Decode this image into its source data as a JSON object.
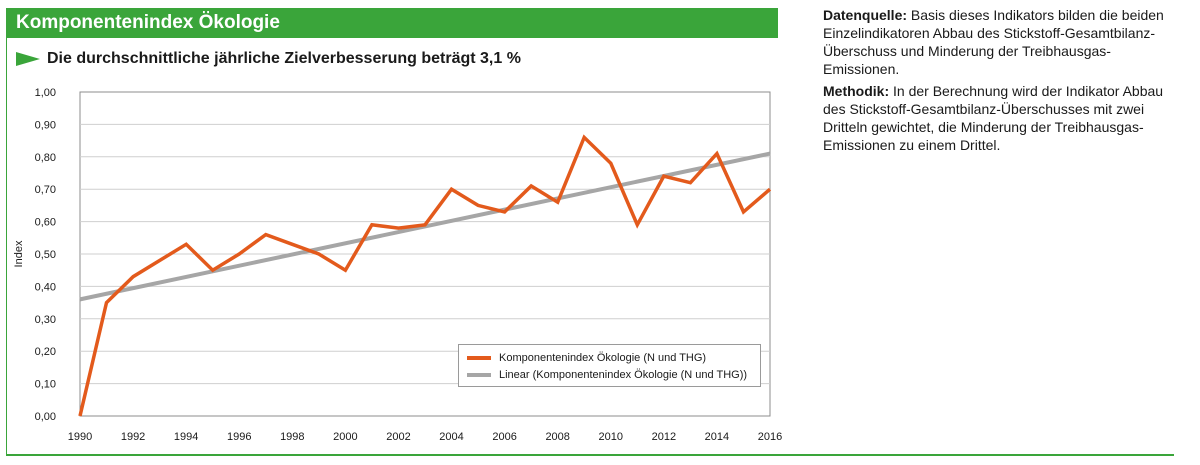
{
  "header": {
    "title": "Komponentenindex Ökologie",
    "subtitle": "Die durchschnittliche jährliche Zielverbesserung beträgt 3,1 %"
  },
  "side": {
    "source_label": "Datenquelle:",
    "source_text": "Basis dieses Indikators bilden die beiden Einzelindikatoren Abbau des Stickstoff-Gesamtbilanz-Überschuss und Minderung der Treibhausgas-Emissionen.",
    "method_label": "Methodik:",
    "method_text": "In der Berechnung wird der Indikator Abbau des Stickstoff-Gesamtbilanz-Überschusses mit zwei Dritteln gewichtet, die Minderung der Treibhausgas-Emissionen zu einem Drittel."
  },
  "colors": {
    "accent": "#3aa53a",
    "series": "#e35a1c",
    "trend": "#a6a6a6"
  },
  "chart_data": {
    "type": "line",
    "ylabel": "Index",
    "xlabel": "",
    "ylim": [
      0,
      1
    ],
    "xlim": [
      1990,
      2016
    ],
    "grid": true,
    "legend_position": "bottom-right",
    "x_ticks": [
      "1990",
      "1992",
      "1994",
      "1996",
      "1998",
      "2000",
      "2002",
      "2004",
      "2006",
      "2008",
      "2010",
      "2012",
      "2014",
      "2016"
    ],
    "y_ticks": [
      "0,00",
      "0,10",
      "0,20",
      "0,30",
      "0,40",
      "0,50",
      "0,60",
      "0,70",
      "0,80",
      "0,90",
      "1,00"
    ],
    "series": [
      {
        "name": "Komponentenindex Ökologie (N und THG)",
        "x": [
          1990,
          1991,
          1992,
          1993,
          1994,
          1995,
          1996,
          1997,
          1998,
          1999,
          2000,
          2001,
          2002,
          2003,
          2004,
          2005,
          2006,
          2007,
          2008,
          2009,
          2010,
          2011,
          2012,
          2013,
          2014,
          2015,
          2016
        ],
        "values": [
          0.0,
          0.35,
          0.43,
          0.48,
          0.53,
          0.45,
          0.5,
          0.56,
          0.53,
          0.5,
          0.45,
          0.59,
          0.58,
          0.59,
          0.7,
          0.65,
          0.63,
          0.71,
          0.66,
          0.86,
          0.78,
          0.59,
          0.74,
          0.72,
          0.81,
          0.63,
          0.7
        ]
      },
      {
        "name": "Linear (Komponentenindex Ökologie (N und THG))",
        "x": [
          1990,
          2016
        ],
        "values": [
          0.36,
          0.81
        ]
      }
    ]
  }
}
